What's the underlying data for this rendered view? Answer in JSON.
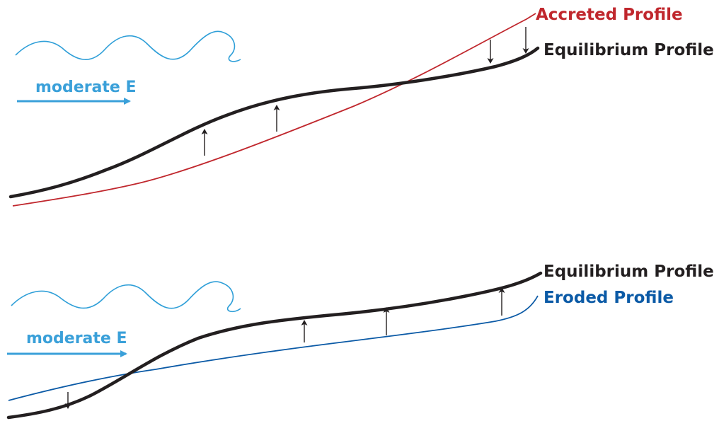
{
  "colors": {
    "wave": "#2f9fd8",
    "energy_arrow": "#3aa0d9",
    "equilibrium": "#231f20",
    "accreted": "#c0272d",
    "eroded": "#0b5aa6",
    "adjust_arrow": "#231f20"
  },
  "top_panel": {
    "energy_label": "moderate E",
    "accreted_label": "Accreted Profile",
    "equilibrium_label": "Equilibrium Profile"
  },
  "bottom_panel": {
    "energy_label": "moderate E",
    "equilibrium_label": "Equilibrium Profile",
    "eroded_label": "Eroded Profile"
  },
  "icons": {
    "wave": "breaking-wave-icon",
    "energy_arrow": "arrow-right-icon",
    "adjust_up": "arrow-up-icon",
    "adjust_down": "arrow-down-icon"
  }
}
